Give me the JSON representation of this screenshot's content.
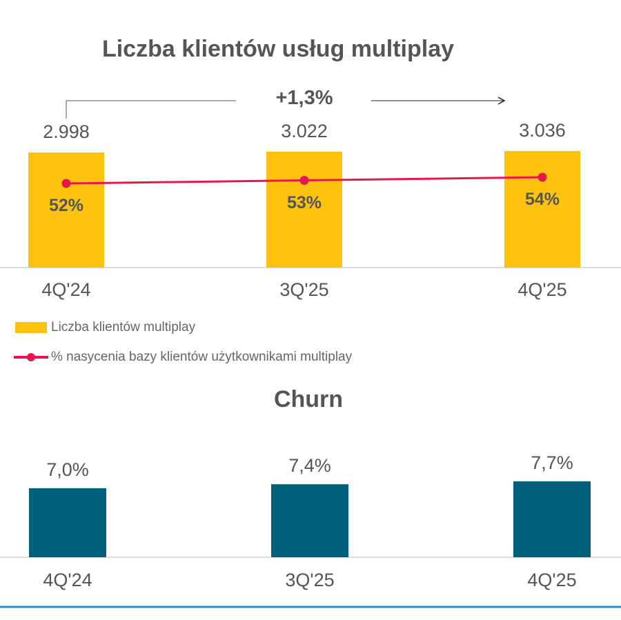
{
  "chart_data": [
    {
      "type": "bar+line",
      "title": "Liczba klientów usług multiplay",
      "categories": [
        "4Q'24",
        "3Q'25",
        "4Q'25"
      ],
      "series": [
        {
          "name": "Liczba klientów multiplay",
          "type": "bar",
          "values": [
            2998,
            3022,
            3036
          ],
          "labels": [
            "2.998",
            "3.022",
            "3.036"
          ],
          "color": "#FFC20E"
        },
        {
          "name": "% nasycenia bazy klientów użytkownikami multiplay",
          "type": "line",
          "values": [
            52,
            53,
            54
          ],
          "labels": [
            "52%",
            "53%",
            "54%"
          ],
          "color": "#E4184F"
        }
      ],
      "annotation": "+1,3%",
      "legend": "bottom-left",
      "grid": false
    },
    {
      "type": "bar",
      "title": "Churn",
      "categories": [
        "4Q'24",
        "3Q'25",
        "4Q'25"
      ],
      "values": [
        7.0,
        7.4,
        7.7
      ],
      "labels": [
        "7,0%",
        "7,4%",
        "7,7%"
      ],
      "color": "#005F7A",
      "grid": false
    }
  ]
}
